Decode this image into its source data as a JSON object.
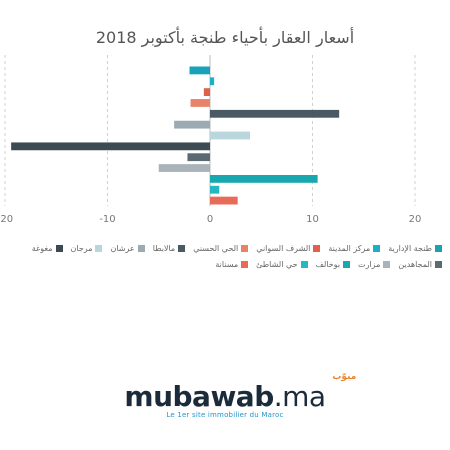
{
  "chart_data": {
    "type": "bar",
    "orientation": "horizontal",
    "title": "أسعار العقار بأحياء طنجة بأكتوبر 2018",
    "xlim": [
      -20,
      20
    ],
    "x_ticks": [
      "-20",
      "-10",
      "0",
      "10",
      "20"
    ],
    "grid": true,
    "legend_position": "bottom",
    "series": [
      {
        "name": "طنجة الإدارية",
        "value": -2,
        "color": "#17a2b8"
      },
      {
        "name": "مركز المدينة",
        "value": 0.4,
        "color": "#1ab0c8"
      },
      {
        "name": "الشرف السواني",
        "value": -0.6,
        "color": "#e0604a"
      },
      {
        "name": "الحي الحسني",
        "value": -1.9,
        "color": "#e8836a"
      },
      {
        "name": "مالابطا",
        "value": 12.6,
        "color": "#4a5a64"
      },
      {
        "name": "عرشان",
        "value": -3.5,
        "color": "#9aabb4"
      },
      {
        "name": "مرجان",
        "value": 3.9,
        "color": "#b8d6dc"
      },
      {
        "name": "مغوغة",
        "value": -19.4,
        "color": "#3c4a52"
      },
      {
        "name": "المجاهدين",
        "value": -2.2,
        "color": "#596a72"
      },
      {
        "name": "مزارت",
        "value": -5,
        "color": "#a8b4ba"
      },
      {
        "name": "بوخالف",
        "value": 10.5,
        "color": "#1aa8b0"
      },
      {
        "name": "حي الشاطئ",
        "value": 0.9,
        "color": "#24b8c4"
      },
      {
        "name": "مسنانة",
        "value": 2.7,
        "color": "#e86a58"
      }
    ]
  },
  "logo": {
    "word": "mubawab",
    "suffix": ".ma",
    "arabic": "مبوّب",
    "tagline": "Le 1er site immobilier du Maroc"
  }
}
